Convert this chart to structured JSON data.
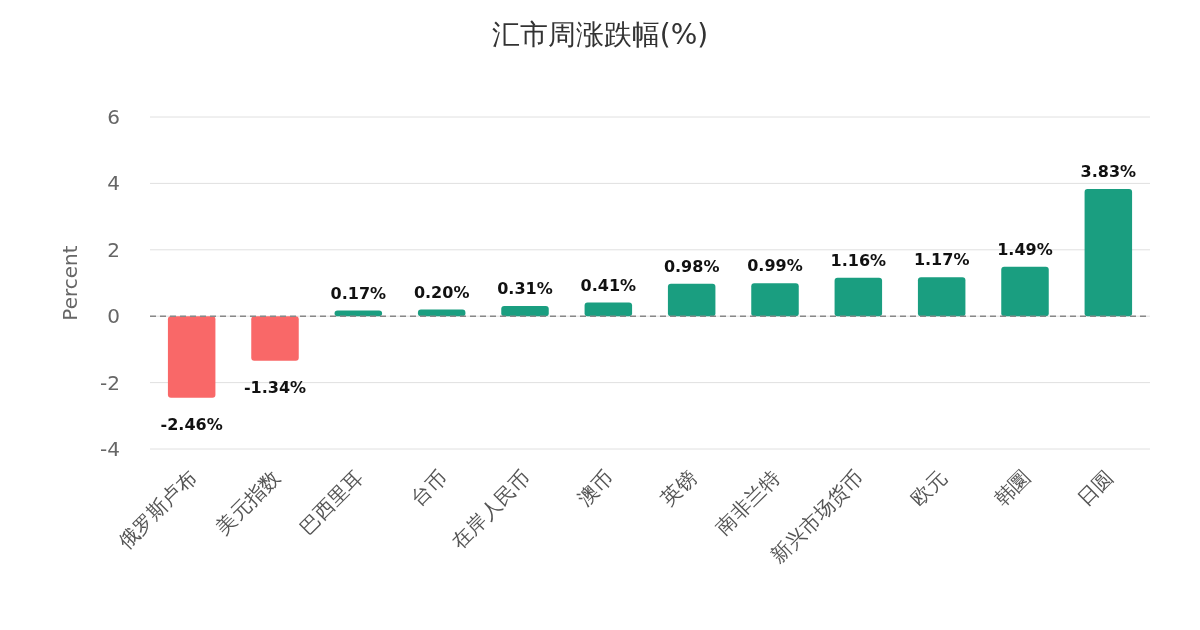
{
  "chart_data": {
    "type": "bar",
    "title": "汇市周涨跌幅(%)",
    "ylabel": "Percent",
    "categories": [
      "俄罗斯卢布",
      "美元指数",
      "巴西里耳",
      "台币",
      "在岸人民币",
      "澳币",
      "英镑",
      "南非兰特",
      "新兴市场货币",
      "欧元",
      "韩圜",
      "日圆"
    ],
    "values": [
      -2.46,
      -1.34,
      0.17,
      0.2,
      0.31,
      0.41,
      0.98,
      0.99,
      1.16,
      1.17,
      1.49,
      3.83
    ],
    "colors": [
      "#f96868",
      "#f96868",
      "#1a9e80",
      "#1a9e80",
      "#1a9e80",
      "#1a9e80",
      "#1a9e80",
      "#1a9e80",
      "#1a9e80",
      "#1a9e80",
      "#1a9e80",
      "#1a9e80"
    ],
    "value_labels": [
      "-2.46%",
      "-1.34%",
      "0.17%",
      "0.20%",
      "0.31%",
      "0.41%",
      "0.98%",
      "0.99%",
      "1.16%",
      "1.17%",
      "1.49%",
      "3.83%"
    ],
    "ylim": [
      -4,
      6
    ],
    "yticks": [
      -4,
      -2,
      0,
      2,
      4,
      6
    ],
    "grid": "y",
    "ref_lines": [
      {
        "axis": "y",
        "value": 0,
        "label": null,
        "color": "#888888",
        "line_style": "dashed"
      }
    ]
  }
}
